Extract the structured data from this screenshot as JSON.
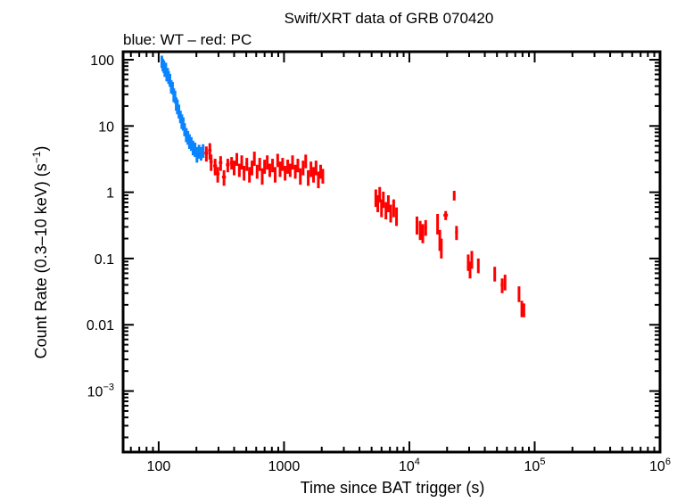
{
  "chart_data": {
    "type": "scatter",
    "title": "Swift/XRT data of GRB 070420",
    "subtitle": "blue: WT – red: PC",
    "xlabel": "Time since BAT trigger (s)",
    "ylabel": "Count Rate (0.3–10 keV) (s",
    "ylabel_sup": "−1",
    "ylabel_end": ")",
    "x_scale": "log",
    "y_scale": "log",
    "xlim": [
      52,
      1000000
    ],
    "ylim": [
      0.00012,
      132
    ],
    "grid": false,
    "x_ticks": [
      {
        "value": 100,
        "label": "100",
        "sup": ""
      },
      {
        "value": 1000,
        "label": "1000",
        "sup": ""
      },
      {
        "value": 10000,
        "label": "10",
        "sup": "4"
      },
      {
        "value": 100000,
        "label": "10",
        "sup": "5"
      },
      {
        "value": 1000000,
        "label": "10",
        "sup": "6"
      }
    ],
    "y_ticks": [
      {
        "value": 100,
        "label": "100",
        "sup": ""
      },
      {
        "value": 10,
        "label": "10",
        "sup": ""
      },
      {
        "value": 1,
        "label": "1",
        "sup": ""
      },
      {
        "value": 0.1,
        "label": "0.1",
        "sup": ""
      },
      {
        "value": 0.01,
        "label": "0.01",
        "sup": ""
      },
      {
        "value": 0.001,
        "label": "10",
        "sup": "−3"
      }
    ],
    "point_format": [
      "time_s",
      "rate",
      "rate_err",
      "time_halfwidth_s"
    ],
    "series": [
      {
        "mode": "WT",
        "color": "#0a84ff",
        "points": [
          [
            106,
            95,
            20,
            1
          ],
          [
            108,
            85,
            18,
            1
          ],
          [
            110,
            80,
            17,
            1
          ],
          [
            112,
            70,
            15,
            1
          ],
          [
            114,
            75,
            15,
            1
          ],
          [
            116,
            60,
            13,
            1
          ],
          [
            118,
            62,
            13,
            1
          ],
          [
            120,
            55,
            12,
            1.5
          ],
          [
            123,
            50,
            11,
            1.5
          ],
          [
            126,
            40,
            9,
            1.5
          ],
          [
            129,
            38,
            8,
            1.5
          ],
          [
            132,
            30,
            7,
            1.5
          ],
          [
            135,
            28,
            6,
            1.5
          ],
          [
            138,
            22,
            5,
            1.5
          ],
          [
            141,
            20,
            5,
            2
          ],
          [
            145,
            17,
            4,
            2
          ],
          [
            149,
            14,
            3,
            2
          ],
          [
            153,
            12,
            3,
            2
          ],
          [
            157,
            11,
            2.5,
            2
          ],
          [
            161,
            9,
            2,
            2
          ],
          [
            166,
            7.5,
            1.8,
            2.5
          ],
          [
            171,
            6.8,
            1.6,
            2.5
          ],
          [
            176,
            6,
            1.5,
            2.5
          ],
          [
            182,
            5.5,
            1.3,
            3
          ],
          [
            188,
            4.8,
            1.2,
            3
          ],
          [
            195,
            4.5,
            1.1,
            3
          ],
          [
            202,
            3.8,
            1,
            3
          ],
          [
            210,
            4.2,
            1,
            3.5
          ],
          [
            218,
            3.9,
            0.9,
            3.5
          ],
          [
            226,
            4.3,
            1,
            3.5
          ]
        ]
      },
      {
        "mode": "PC",
        "color": "#ff0000",
        "points": [
          [
            240,
            3.9,
            1,
            8
          ],
          [
            256,
            4.3,
            1.2,
            8
          ],
          [
            262,
            2.9,
            0.8,
            8
          ],
          [
            282,
            2.5,
            0.7,
            10
          ],
          [
            296,
            1.9,
            0.5,
            10
          ],
          [
            312,
            2.8,
            0.7,
            10
          ],
          [
            332,
            1.7,
            0.45,
            12
          ],
          [
            356,
            2.6,
            0.6,
            12
          ],
          [
            382,
            2.8,
            0.6,
            12
          ],
          [
            400,
            2.4,
            0.6,
            10
          ],
          [
            420,
            3.2,
            0.7,
            10
          ],
          [
            440,
            2.2,
            0.5,
            10
          ],
          [
            460,
            2.9,
            0.7,
            10
          ],
          [
            480,
            2.0,
            0.5,
            10
          ],
          [
            505,
            2.7,
            0.6,
            12
          ],
          [
            530,
            1.9,
            0.5,
            12
          ],
          [
            555,
            2.4,
            0.6,
            12
          ],
          [
            580,
            3.3,
            0.8,
            12
          ],
          [
            610,
            2.1,
            0.5,
            12
          ],
          [
            640,
            2.7,
            0.6,
            14
          ],
          [
            670,
            1.8,
            0.5,
            14
          ],
          [
            700,
            2.5,
            0.6,
            14
          ],
          [
            735,
            2.9,
            0.7,
            14
          ],
          [
            770,
            2.2,
            0.5,
            14
          ],
          [
            810,
            2.6,
            0.6,
            16
          ],
          [
            850,
            1.9,
            0.5,
            16
          ],
          [
            890,
            3.1,
            0.7,
            16
          ],
          [
            930,
            2.3,
            0.6,
            16
          ],
          [
            975,
            2.7,
            0.6,
            18
          ],
          [
            1020,
            2.0,
            0.5,
            18
          ],
          [
            1070,
            2.5,
            0.6,
            18
          ],
          [
            1120,
            2.2,
            0.5,
            20
          ],
          [
            1170,
            2.9,
            0.7,
            20
          ],
          [
            1230,
            2.1,
            0.5,
            20
          ],
          [
            1290,
            2.6,
            0.6,
            22
          ],
          [
            1350,
            1.8,
            0.5,
            22
          ],
          [
            1420,
            2.4,
            0.6,
            22
          ],
          [
            1490,
            3.0,
            0.7,
            24
          ],
          [
            1560,
            1.7,
            0.45,
            24
          ],
          [
            1640,
            2.3,
            0.6,
            24
          ],
          [
            1720,
            1.9,
            0.5,
            26
          ],
          [
            1800,
            2.4,
            0.6,
            26
          ],
          [
            1880,
            1.6,
            0.45,
            26
          ],
          [
            1960,
            2.1,
            0.5,
            28
          ],
          [
            2040,
            1.8,
            0.45,
            28
          ],
          [
            5400,
            0.85,
            0.25,
            60
          ],
          [
            5600,
            0.7,
            0.2,
            60
          ],
          [
            5800,
            0.95,
            0.25,
            60
          ],
          [
            6000,
            0.6,
            0.18,
            60
          ],
          [
            6200,
            0.8,
            0.22,
            70
          ],
          [
            6500,
            0.55,
            0.16,
            70
          ],
          [
            6800,
            0.7,
            0.2,
            80
          ],
          [
            7100,
            0.5,
            0.15,
            80
          ],
          [
            7500,
            0.6,
            0.18,
            90
          ],
          [
            7900,
            0.45,
            0.14,
            90
          ],
          [
            11500,
            0.33,
            0.1,
            150
          ],
          [
            12200,
            0.28,
            0.09,
            150
          ],
          [
            12800,
            0.25,
            0.08,
            150
          ],
          [
            13500,
            0.3,
            0.08,
            300
          ],
          [
            16800,
            0.35,
            0.12,
            100
          ],
          [
            17500,
            0.2,
            0.07,
            100
          ],
          [
            18000,
            0.15,
            0.05,
            100
          ],
          [
            19500,
            0.45,
            0.07,
            800
          ],
          [
            22800,
            0.9,
            0.15,
            120
          ],
          [
            23800,
            0.25,
            0.06,
            600
          ],
          [
            29500,
            0.09,
            0.025,
            300
          ],
          [
            30500,
            0.07,
            0.02,
            300
          ],
          [
            31500,
            0.1,
            0.03,
            300
          ],
          [
            35500,
            0.08,
            0.02,
            700
          ],
          [
            48000,
            0.06,
            0.015,
            400
          ],
          [
            55000,
            0.04,
            0.01,
            1500
          ],
          [
            58000,
            0.045,
            0.012,
            500
          ],
          [
            75000,
            0.03,
            0.008,
            600
          ],
          [
            79000,
            0.018,
            0.005,
            600
          ],
          [
            82000,
            0.017,
            0.004,
            1200
          ]
        ]
      }
    ]
  }
}
